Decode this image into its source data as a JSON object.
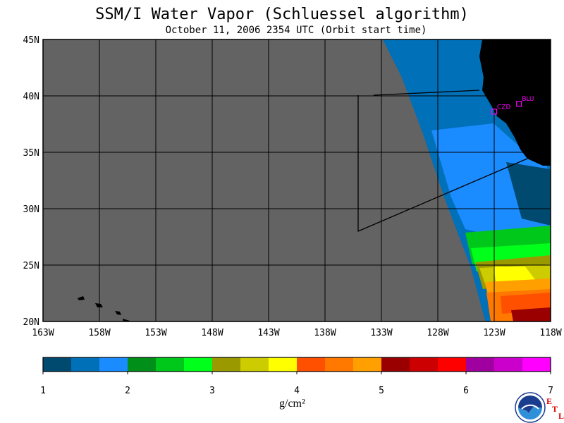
{
  "title": "SSM/I Water Vapor (Schluessel algorithm)",
  "subtitle": "October 11, 2006  2354 UTC  (Orbit start time)",
  "lat_labels": [
    "45N",
    "40N",
    "35N",
    "30N",
    "25N",
    "20N"
  ],
  "lon_labels": [
    "163W",
    "158W",
    "153W",
    "148W",
    "143W",
    "138W",
    "133W",
    "128W",
    "123W",
    "118W"
  ],
  "stations": [
    {
      "name": "CZD",
      "lon": -123.0,
      "lat": 38.6
    },
    {
      "name": "BLU",
      "lon": -120.8,
      "lat": 39.3
    }
  ],
  "colorbar": {
    "ticks": [
      "1",
      "2",
      "3",
      "4",
      "5",
      "6",
      "7"
    ],
    "unit": "g/cm²",
    "colors": [
      "#004a70",
      "#0070b8",
      "#1a8cff",
      "#00901a",
      "#00c81a",
      "#00ff1a",
      "#9a9a00",
      "#cccc00",
      "#ffff00",
      "#ff5000",
      "#ff7800",
      "#ffa000",
      "#9a0000",
      "#cc0000",
      "#ff0000",
      "#a000a0",
      "#cc00cc",
      "#ff00ff"
    ]
  },
  "colors": {
    "no_data": "#636363",
    "land": "#000000",
    "grid": "#000000"
  },
  "logo": {
    "name": "noaa-logo",
    "text": "NOAA"
  },
  "etl_letters": [
    "E",
    "T",
    "L"
  ]
}
